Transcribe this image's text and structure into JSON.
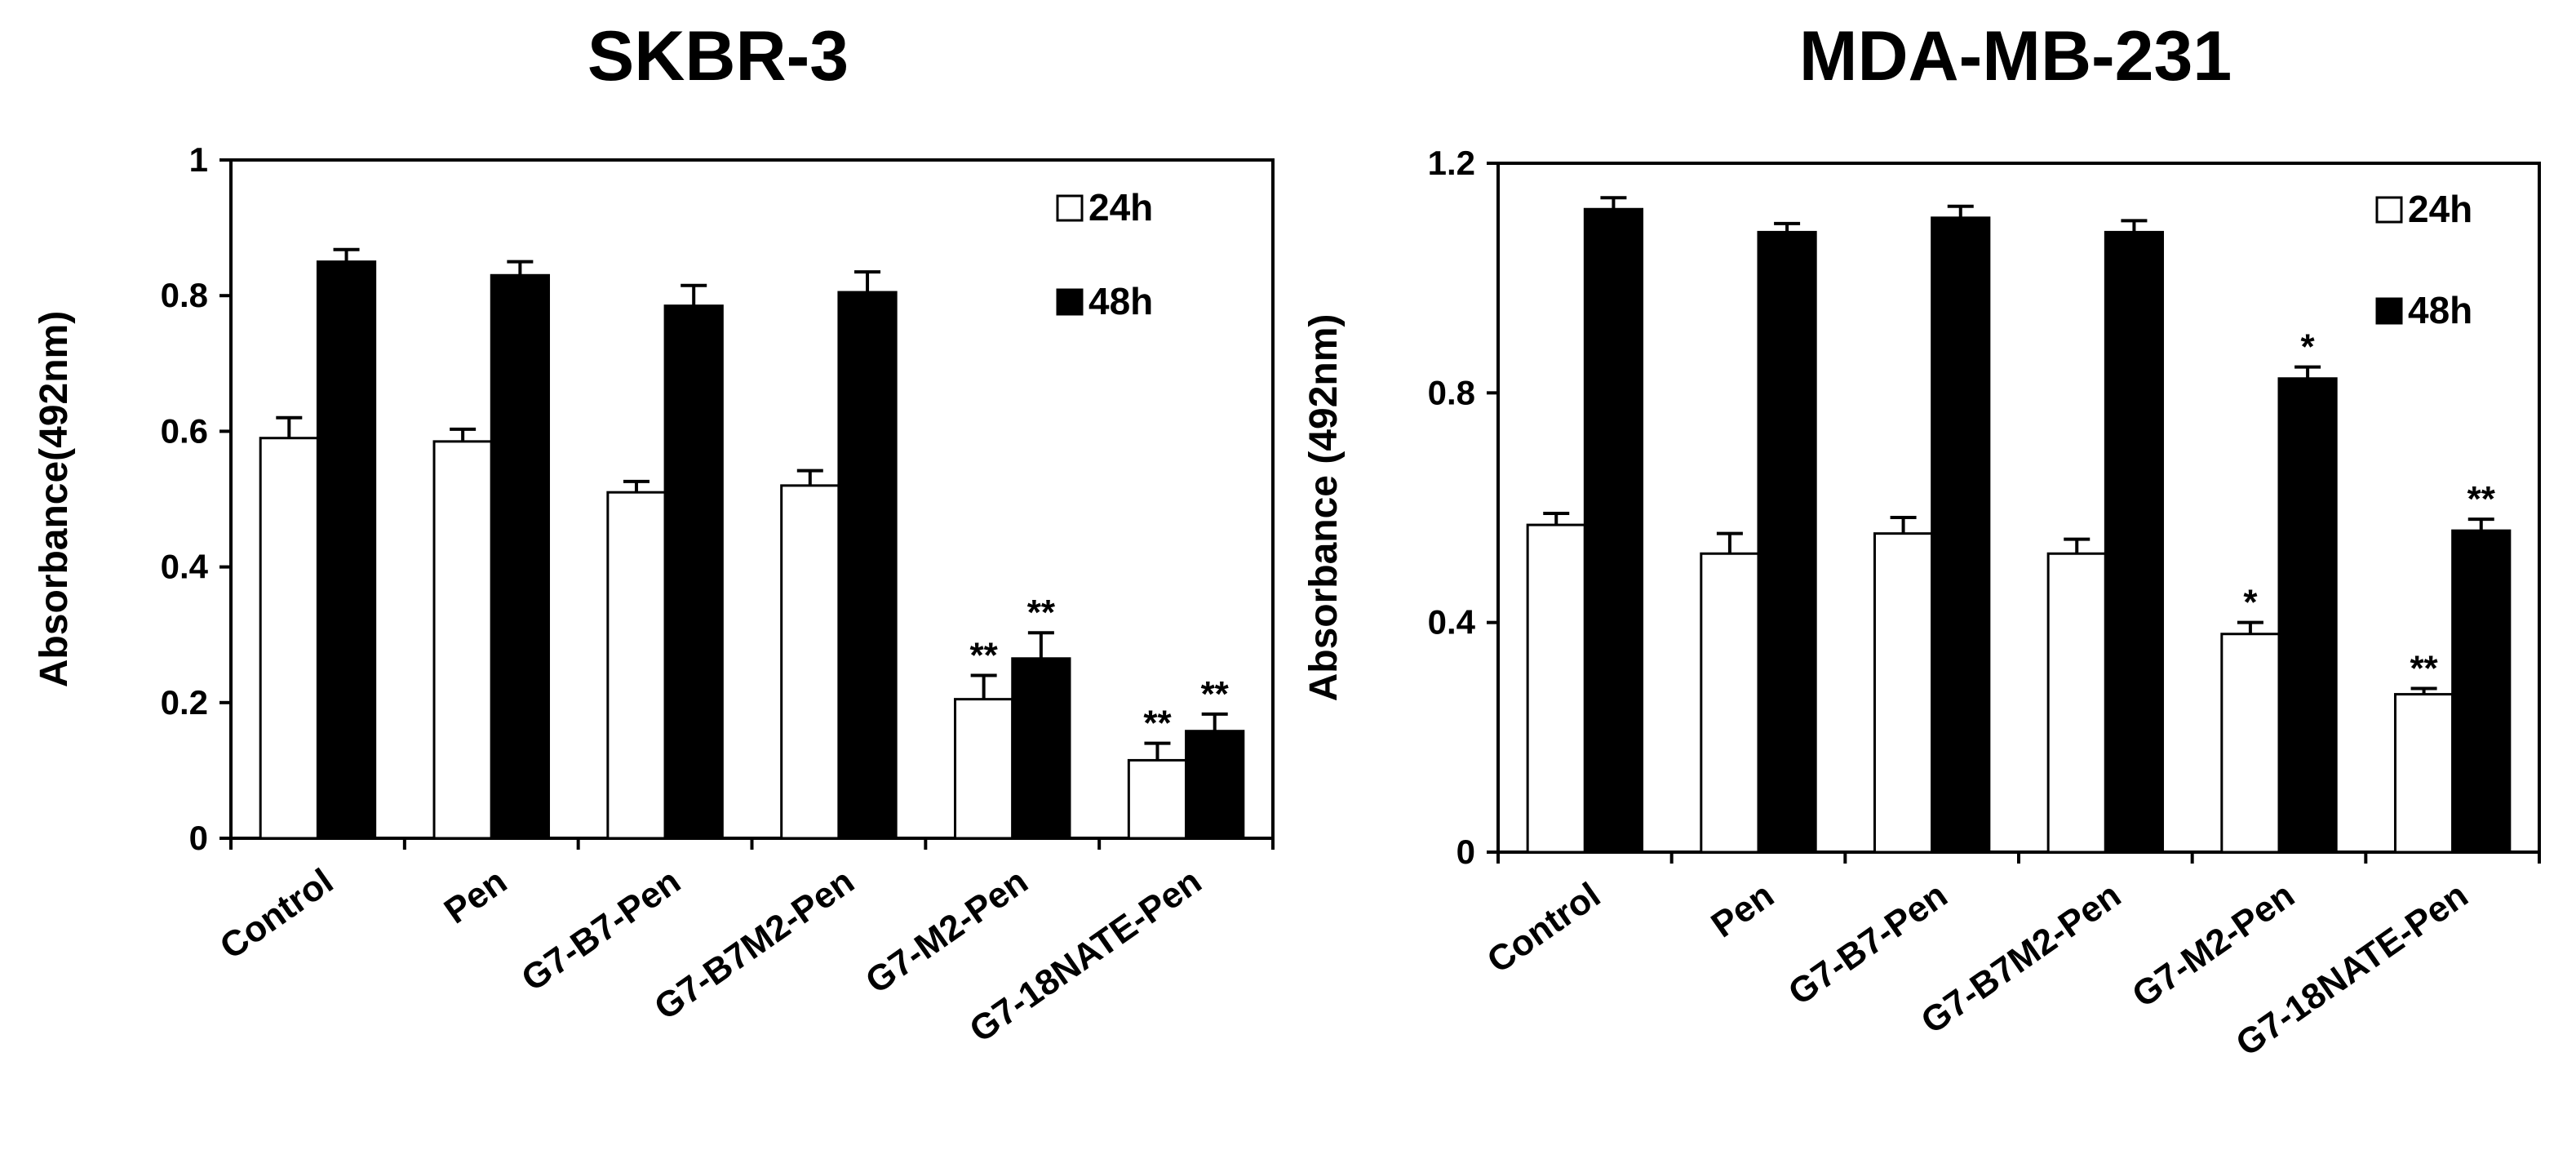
{
  "chart_data": [
    {
      "type": "bar",
      "title": "SKBR-3",
      "xlabel": "",
      "ylabel": "Absorbance(492nm)",
      "ylim": [
        0,
        1
      ],
      "yticks": [
        "0",
        "0.2",
        "0.4",
        "0.6",
        "0.8",
        "1"
      ],
      "categories": [
        "Control",
        "Pen",
        "G7-B7-Pen",
        "G7-B7M2-Pen",
        "G7-M2-Pen",
        "G7-18NATE-Pen"
      ],
      "series": [
        {
          "name": "24h",
          "color": "#ffffff",
          "values": [
            0.59,
            0.585,
            0.51,
            0.52,
            0.205,
            0.115
          ],
          "errors": [
            0.03,
            0.018,
            0.016,
            0.022,
            0.035,
            0.025
          ],
          "annotations": [
            "",
            "",
            "",
            "",
            "**",
            "**"
          ]
        },
        {
          "name": "48h",
          "color": "#000000",
          "values": [
            0.85,
            0.83,
            0.785,
            0.805,
            0.265,
            0.158
          ],
          "errors": [
            0.018,
            0.02,
            0.03,
            0.03,
            0.038,
            0.025
          ],
          "annotations": [
            "",
            "",
            "",
            "",
            "**",
            "**"
          ]
        }
      ],
      "legend": "top-right"
    },
    {
      "type": "bar",
      "title": "MDA-MB-231",
      "xlabel": "",
      "ylabel": "Absorbance (492nm)",
      "ylim": [
        0,
        1.2
      ],
      "yticks": [
        "0",
        "0.4",
        "0.8",
        "1.2"
      ],
      "categories": [
        "Control",
        "Pen",
        "G7-B7-Pen",
        "G7-B7M2-Pen",
        "G7-M2-Pen",
        "G7-18NATE-Pen"
      ],
      "series": [
        {
          "name": "24h",
          "color": "#ffffff",
          "values": [
            0.57,
            0.52,
            0.555,
            0.52,
            0.38,
            0.275
          ],
          "errors": [
            0.02,
            0.035,
            0.028,
            0.025,
            0.02,
            0.01
          ],
          "annotations": [
            "",
            "",
            "",
            "",
            "*",
            "**"
          ]
        },
        {
          "name": "48h",
          "color": "#000000",
          "values": [
            1.12,
            1.08,
            1.105,
            1.08,
            0.825,
            0.56
          ],
          "errors": [
            0.02,
            0.015,
            0.02,
            0.02,
            0.02,
            0.02
          ],
          "annotations": [
            "",
            "",
            "",
            "",
            "*",
            "**"
          ]
        }
      ],
      "legend": "top-right"
    }
  ]
}
